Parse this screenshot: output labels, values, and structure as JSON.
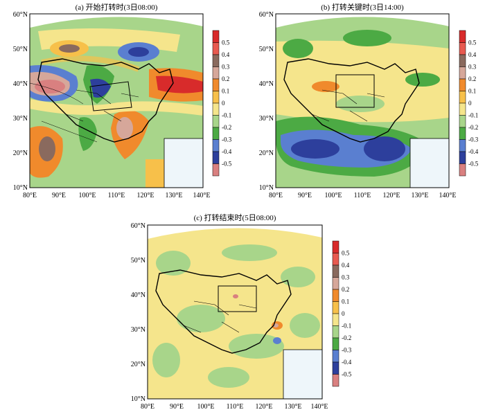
{
  "figure": {
    "panels": [
      {
        "id": "a",
        "title": "(a) 开始打转时(3日08:00)",
        "lat_labels": [
          "60°N",
          "50°N",
          "40°N",
          "30°N",
          "20°N",
          "10°N"
        ],
        "lon_labels": [
          "80°E",
          "90°E",
          "100°E",
          "110°E",
          "120°E",
          "130°E",
          "140°E"
        ]
      },
      {
        "id": "b",
        "title": "(b) 打转关键时(3日14:00)",
        "lat_labels": [
          "60°N",
          "50°N",
          "40°N",
          "30°N",
          "20°N",
          "10°N"
        ],
        "lon_labels": [
          "80°E",
          "90°E",
          "100°E",
          "110°E",
          "120°E",
          "130°E",
          "140°E"
        ]
      },
      {
        "id": "c",
        "title": "(c) 打转结束时(5日08:00)",
        "lat_labels": [
          "60°N",
          "50°N",
          "40°N",
          "30°N",
          "20°N",
          "10°N"
        ],
        "lon_labels": [
          "80°E",
          "90°E",
          "100°E",
          "110°E",
          "120°E",
          "130°E",
          "140°E"
        ]
      }
    ],
    "colorbar": {
      "labels": [
        "0.5",
        "0.4",
        "0.3",
        "0.2",
        "0.1",
        "0",
        "-0.1",
        "-0.2",
        "-0.3",
        "-0.4",
        "-0.5"
      ],
      "colors": [
        "#d82b2b",
        "#e85a50",
        "#8a6a5e",
        "#d6a79a",
        "#f08a2c",
        "#f7c04a",
        "#f5e58c",
        "#a8d58a",
        "#4caa44",
        "#5a7fd0",
        "#2d3f9c",
        "#d98080"
      ]
    }
  }
}
